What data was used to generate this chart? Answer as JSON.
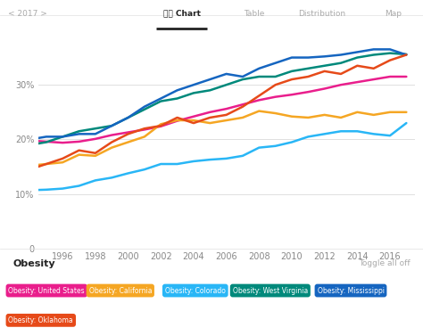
{
  "series": {
    "United States": {
      "color": "#e91e8c",
      "label": "Obesity: United States",
      "years": [
        1994,
        1995,
        1996,
        1997,
        1998,
        1999,
        2000,
        2001,
        2002,
        2003,
        2004,
        2005,
        2006,
        2007,
        2008,
        2009,
        2010,
        2011,
        2012,
        2013,
        2014,
        2015,
        2016,
        2017
      ],
      "values": [
        19.8,
        19.6,
        19.4,
        19.6,
        20.1,
        20.8,
        21.3,
        21.8,
        22.4,
        23.4,
        24.2,
        25.0,
        25.6,
        26.4,
        27.2,
        27.8,
        28.2,
        28.7,
        29.3,
        30.0,
        30.5,
        31.0,
        31.5,
        31.5
      ],
      "badge_color": "#e91e8c"
    },
    "California": {
      "color": "#f5a623",
      "label": "Obesity: California",
      "years": [
        1994,
        1995,
        1996,
        1997,
        1998,
        1999,
        2000,
        2001,
        2002,
        2003,
        2004,
        2005,
        2006,
        2007,
        2008,
        2009,
        2010,
        2011,
        2012,
        2013,
        2014,
        2015,
        2016,
        2017
      ],
      "values": [
        15.2,
        15.5,
        15.8,
        17.2,
        17.0,
        18.5,
        19.5,
        20.5,
        22.8,
        23.5,
        23.5,
        23.0,
        23.5,
        24.0,
        25.2,
        24.8,
        24.2,
        24.0,
        24.5,
        24.0,
        25.0,
        24.5,
        25.0,
        25.0
      ],
      "badge_color": "#f5a623"
    },
    "Colorado": {
      "color": "#29b6f6",
      "label": "Obesity: Colorado",
      "years": [
        1994,
        1995,
        1996,
        1997,
        1998,
        1999,
        2000,
        2001,
        2002,
        2003,
        2004,
        2005,
        2006,
        2007,
        2008,
        2009,
        2010,
        2011,
        2012,
        2013,
        2014,
        2015,
        2016,
        2017
      ],
      "values": [
        10.7,
        10.8,
        11.0,
        11.5,
        12.5,
        13.0,
        13.8,
        14.5,
        15.5,
        15.5,
        16.0,
        16.3,
        16.5,
        17.0,
        18.5,
        18.8,
        19.5,
        20.5,
        21.0,
        21.5,
        21.5,
        21.0,
        20.7,
        23.0
      ],
      "badge_color": "#29b6f6"
    },
    "West Virginia": {
      "color": "#00897b",
      "label": "Obesity: West Virginia",
      "years": [
        1994,
        1995,
        1996,
        1997,
        1998,
        1999,
        2000,
        2001,
        2002,
        2003,
        2004,
        2005,
        2006,
        2007,
        2008,
        2009,
        2010,
        2011,
        2012,
        2013,
        2014,
        2015,
        2016,
        2017
      ],
      "values": [
        19.0,
        19.5,
        20.5,
        21.5,
        22.0,
        22.5,
        24.0,
        25.5,
        27.0,
        27.5,
        28.5,
        29.0,
        30.0,
        31.0,
        31.5,
        31.5,
        32.5,
        33.0,
        33.5,
        34.0,
        35.0,
        35.5,
        35.8,
        35.6
      ],
      "badge_color": "#00897b"
    },
    "Mississippi": {
      "color": "#1565c0",
      "label": "Obesity: Mississippi",
      "years": [
        1994,
        1995,
        1996,
        1997,
        1998,
        1999,
        2000,
        2001,
        2002,
        2003,
        2004,
        2005,
        2006,
        2007,
        2008,
        2009,
        2010,
        2011,
        2012,
        2013,
        2014,
        2015,
        2016,
        2017
      ],
      "values": [
        20.0,
        20.5,
        20.5,
        21.0,
        21.0,
        22.5,
        24.0,
        26.0,
        27.5,
        29.0,
        30.0,
        31.0,
        32.0,
        31.5,
        33.0,
        34.0,
        35.0,
        35.0,
        35.2,
        35.5,
        36.0,
        36.5,
        36.5,
        35.5
      ],
      "badge_color": "#1565c0"
    },
    "Oklahoma": {
      "color": "#e64a19",
      "label": "Obesity: Oklahoma",
      "years": [
        1994,
        1995,
        1996,
        1997,
        1998,
        1999,
        2000,
        2001,
        2002,
        2003,
        2004,
        2005,
        2006,
        2007,
        2008,
        2009,
        2010,
        2011,
        2012,
        2013,
        2014,
        2015,
        2016,
        2017
      ],
      "values": [
        14.5,
        15.5,
        16.5,
        18.0,
        17.5,
        19.5,
        21.0,
        22.0,
        22.5,
        24.0,
        23.0,
        24.0,
        24.5,
        26.0,
        28.0,
        30.0,
        31.0,
        31.5,
        32.5,
        32.0,
        33.5,
        33.0,
        34.5,
        35.5
      ],
      "badge_color": "#e64a19"
    }
  },
  "ylim": [
    0,
    40
  ],
  "yticks": [
    0,
    10,
    20,
    30
  ],
  "ytick_labels": [
    "0",
    "10%",
    "20%",
    "30%"
  ],
  "xlabel_years": [
    1996,
    1998,
    2000,
    2002,
    2004,
    2006,
    2008,
    2010,
    2012,
    2014,
    2016
  ],
  "background_color": "#ffffff",
  "grid_color": "#e0e0e0",
  "line_width": 1.8,
  "badges_row1": [
    [
      "Obesity: United States",
      "#e91e8c"
    ],
    [
      "Obesity: California",
      "#f5a623"
    ],
    [
      "Obesity: Colorado",
      "#29b6f6"
    ],
    [
      "Obesity: West Virginia",
      "#00897b"
    ],
    [
      "Obesity: Mississippi",
      "#1565c0"
    ]
  ],
  "badges_row2": [
    [
      "Obesity: Oklahoma",
      "#e64a19"
    ]
  ]
}
